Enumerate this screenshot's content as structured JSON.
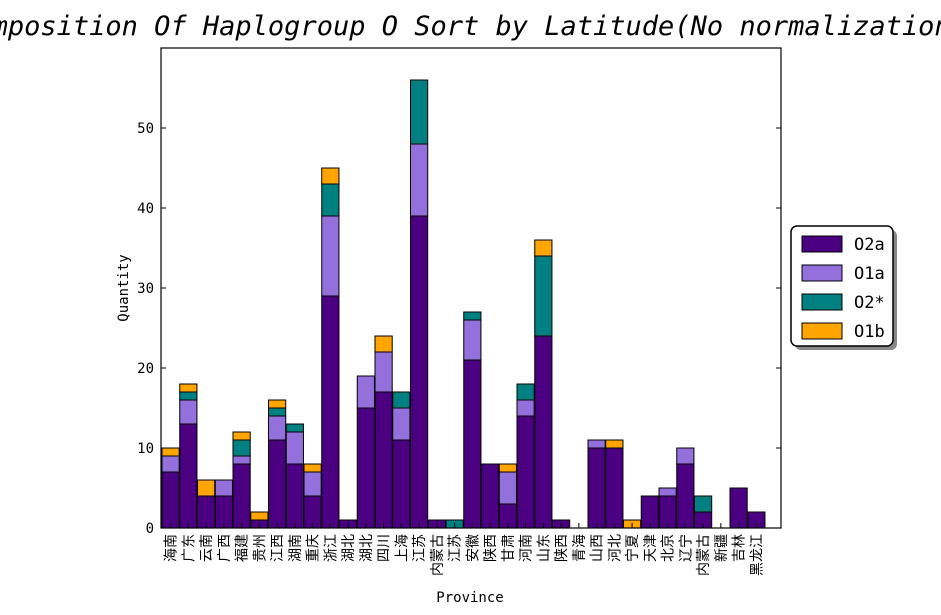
{
  "chart_data": {
    "type": "bar",
    "stacked": true,
    "title": "Composition Of Haplogroup O Sort by Latitude(No normalization)",
    "xlabel": "Province",
    "ylabel": "Quantity",
    "ylim": [
      0,
      60
    ],
    "yticks": [
      0,
      10,
      20,
      30,
      40,
      50
    ],
    "grid": false,
    "legend_position": "right",
    "categories": [
      "海南",
      "广东",
      "云南",
      "广西",
      "福建",
      "贵州",
      "江西",
      "湖南",
      "重庆",
      "浙江",
      "湖北",
      "湖北",
      "四川",
      "上海",
      "江苏",
      "内蒙古",
      "江苏",
      "安徽",
      "陕西",
      "甘肃",
      "河南",
      "山东",
      "陕西",
      "青海",
      "山西",
      "河北",
      "宁夏",
      "天津",
      "北京",
      "辽宁",
      "内蒙古",
      "新疆",
      "吉林",
      "黑龙江"
    ],
    "series": [
      {
        "name": "O2a",
        "color": "#4b0082",
        "values": [
          7,
          13,
          4,
          4,
          8,
          1,
          11,
          8,
          4,
          29,
          1,
          15,
          17,
          11,
          39,
          1,
          0,
          21,
          8,
          3,
          14,
          24,
          1,
          0,
          10,
          10,
          0,
          4,
          4,
          8,
          2,
          0,
          5,
          2
        ]
      },
      {
        "name": "O1a",
        "color": "#9370db",
        "values": [
          2,
          3,
          0,
          2,
          1,
          0,
          3,
          4,
          3,
          10,
          0,
          4,
          5,
          4,
          9,
          0,
          0,
          5,
          0,
          4,
          2,
          0,
          0,
          0,
          1,
          0,
          0,
          0,
          1,
          2,
          0,
          0,
          0,
          0
        ]
      },
      {
        "name": "O2*",
        "color": "#008080",
        "values": [
          0,
          1,
          0,
          0,
          2,
          0,
          1,
          1,
          0,
          4,
          0,
          0,
          0,
          2,
          8,
          0,
          1,
          1,
          0,
          0,
          2,
          10,
          0,
          0,
          0,
          0,
          0,
          0,
          0,
          0,
          2,
          0,
          0,
          0
        ]
      },
      {
        "name": "O1b",
        "color": "#ffa500",
        "values": [
          1,
          1,
          2,
          0,
          1,
          1,
          1,
          0,
          1,
          2,
          0,
          0,
          2,
          0,
          0,
          0,
          0,
          0,
          0,
          1,
          0,
          2,
          0,
          0,
          0,
          1,
          1,
          0,
          0,
          0,
          0,
          0,
          0,
          0
        ]
      }
    ]
  }
}
